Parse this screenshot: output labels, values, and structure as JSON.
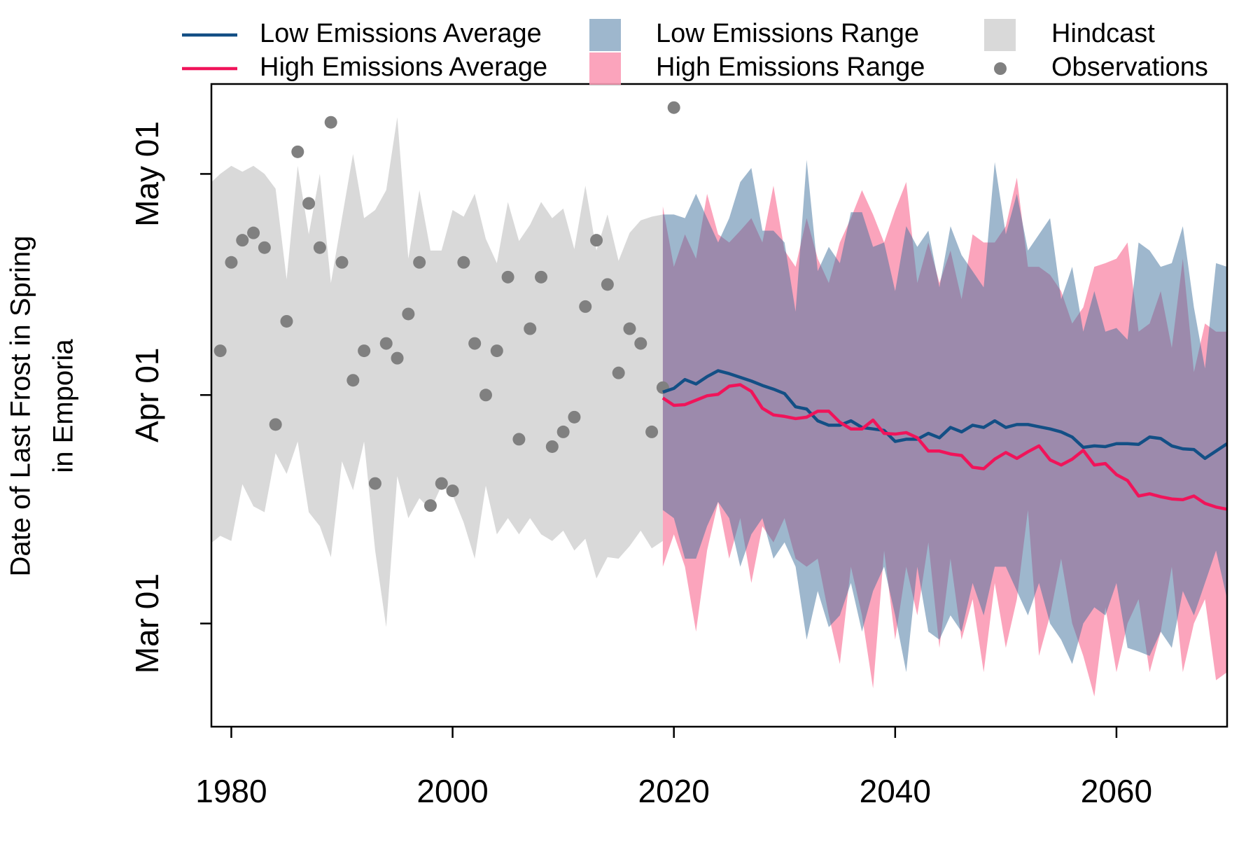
{
  "chart_data": {
    "type": "line",
    "ylabel": [
      "Date of Last Frost in Spring",
      "in Emporia"
    ],
    "xlim": [
      1978.2,
      2070
    ],
    "xticks": [
      1980,
      2000,
      2020,
      2040,
      2060
    ],
    "ylim": [
      46,
      133.2
    ],
    "yticks": [
      {
        "value": 60,
        "label": "Mar 01"
      },
      {
        "value": 91,
        "label": "Apr 01"
      },
      {
        "value": 121,
        "label": "May 01"
      }
    ],
    "legend": "top",
    "series": [
      {
        "name": "Low Emissions Average",
        "type": "line",
        "color": "#134f85",
        "x": [
          2019,
          2020,
          2021,
          2022,
          2023,
          2024,
          2025,
          2026,
          2027,
          2028,
          2029,
          2030,
          2031,
          2032,
          2033,
          2034,
          2035,
          2036,
          2037,
          2038,
          2039,
          2040,
          2041,
          2042,
          2043,
          2044,
          2045,
          2046,
          2047,
          2048,
          2049,
          2050,
          2051,
          2052,
          2053,
          2054,
          2055,
          2056,
          2057,
          2058,
          2059,
          2060,
          2061,
          2062,
          2063,
          2064,
          2065,
          2066,
          2067,
          2068,
          2069,
          2070
        ],
        "values": [
          91.4,
          91.9,
          93.1,
          92.5,
          93.5,
          94.3,
          93.9,
          93.4,
          92.9,
          92.3,
          91.8,
          91.2,
          89.4,
          89.1,
          87.5,
          86.9,
          86.9,
          87.5,
          86.6,
          86.4,
          86.2,
          84.7,
          85,
          85,
          85.8,
          85.2,
          86.6,
          86,
          86.9,
          86.6,
          87.5,
          86.6,
          87,
          87,
          86.7,
          86.4,
          86,
          85.3,
          83.9,
          84.1,
          84,
          84.4,
          84.4,
          84.3,
          85.3,
          85.1,
          84.1,
          83.7,
          83.6,
          82.4,
          83.4,
          84.4
        ]
      },
      {
        "name": "High Emissions Average",
        "type": "line",
        "color": "#f0145a",
        "x": [
          2019,
          2020,
          2021,
          2022,
          2023,
          2024,
          2025,
          2026,
          2027,
          2028,
          2029,
          2030,
          2031,
          2032,
          2033,
          2034,
          2035,
          2036,
          2037,
          2038,
          2039,
          2040,
          2041,
          2042,
          2043,
          2044,
          2045,
          2046,
          2047,
          2048,
          2049,
          2050,
          2051,
          2052,
          2053,
          2054,
          2055,
          2056,
          2057,
          2058,
          2059,
          2060,
          2061,
          2062,
          2063,
          2064,
          2065,
          2066,
          2067,
          2068,
          2069,
          2070
        ],
        "values": [
          90.6,
          89.6,
          89.7,
          90.3,
          90.9,
          91.1,
          92.2,
          92.4,
          91.5,
          89.2,
          88.3,
          88.1,
          87.8,
          88,
          88.8,
          88.8,
          87.3,
          86.4,
          86.4,
          87.6,
          85.8,
          85.7,
          85.9,
          85.2,
          83.4,
          83.4,
          83,
          82.8,
          81.2,
          81,
          82.3,
          83.2,
          82.4,
          83.3,
          84.1,
          82.2,
          81.5,
          82.3,
          83.5,
          81.5,
          81.7,
          80.2,
          79.4,
          77.3,
          77.6,
          77.2,
          76.9,
          76.8,
          77.3,
          76.3,
          75.8,
          75.5
        ]
      },
      {
        "name": "Low Emissions Range",
        "type": "band",
        "color": "#3d6f9c",
        "x": [
          2019,
          2020,
          2021,
          2022,
          2023,
          2024,
          2025,
          2026,
          2027,
          2028,
          2029,
          2030,
          2031,
          2032,
          2033,
          2034,
          2035,
          2036,
          2037,
          2038,
          2039,
          2040,
          2041,
          2042,
          2043,
          2044,
          2045,
          2046,
          2047,
          2048,
          2049,
          2050,
          2051,
          2052,
          2053,
          2054,
          2055,
          2056,
          2057,
          2058,
          2059,
          2060,
          2061,
          2062,
          2063,
          2064,
          2065,
          2066,
          2067,
          2068,
          2069,
          2070
        ],
        "upper": [
          115.5,
          115.5,
          115,
          118.3,
          115,
          111.7,
          115,
          119.9,
          121.8,
          113.3,
          113.3,
          111.7,
          102.3,
          122.9,
          107.8,
          111.1,
          108.9,
          115.8,
          115.8,
          111.1,
          111.7,
          105.1,
          113.9,
          111.1,
          113.3,
          105.6,
          113.9,
          110,
          107.8,
          105.6,
          122.6,
          112.8,
          118.3,
          110.6,
          112.8,
          115,
          104,
          108.4,
          99.6,
          105.1,
          99.6,
          100.1,
          98.5,
          111.7,
          110.6,
          108.4,
          108.9,
          113.9,
          102.9,
          94.6,
          108.9,
          108.4
        ],
        "lower": [
          75.4,
          74.3,
          68.8,
          68.8,
          73.2,
          76.5,
          74.3,
          67.7,
          72.1,
          74.3,
          68.8,
          71,
          67.7,
          57.8,
          64.4,
          59.5,
          61.1,
          65.5,
          58.9,
          64.4,
          67.7,
          61.1,
          53.4,
          67.7,
          58.9,
          57.8,
          61.1,
          58.9,
          65.5,
          61.1,
          67.7,
          67.7,
          64.4,
          61.1,
          65.5,
          60,
          57.8,
          54.5,
          60,
          62.2,
          61.1,
          65.5,
          56.7,
          56.2,
          55.6,
          58.9,
          56.7,
          64.4,
          61.1,
          65.5,
          69.9,
          63.3
        ]
      },
      {
        "name": "High Emissions Range",
        "type": "band",
        "color": "#fb9ab5",
        "x": [
          2019,
          2020,
          2021,
          2022,
          2023,
          2024,
          2025,
          2026,
          2027,
          2028,
          2029,
          2030,
          2031,
          2032,
          2033,
          2034,
          2035,
          2036,
          2037,
          2038,
          2039,
          2040,
          2041,
          2042,
          2043,
          2044,
          2045,
          2046,
          2047,
          2048,
          2049,
          2050,
          2051,
          2052,
          2053,
          2054,
          2055,
          2056,
          2057,
          2058,
          2059,
          2060,
          2061,
          2062,
          2063,
          2064,
          2065,
          2066,
          2067,
          2068,
          2069,
          2070
        ],
        "upper": [
          116.6,
          108.4,
          112.8,
          109.5,
          118.3,
          112.8,
          111.7,
          113.3,
          115,
          111.7,
          119.4,
          110.6,
          108.4,
          115,
          109.5,
          106.2,
          111.7,
          115,
          118.8,
          115.5,
          111.7,
          116.1,
          119.9,
          106.2,
          111.7,
          106.2,
          110.6,
          104,
          112.8,
          111.7,
          111.7,
          113.9,
          120.5,
          108.4,
          108.4,
          107.3,
          105.1,
          100.7,
          102.9,
          108.4,
          108.9,
          109.5,
          111.7,
          99.6,
          100.7,
          105.1,
          97.4,
          109.5,
          94.1,
          100.7,
          99.6,
          99.6
        ],
        "lower": [
          67.7,
          72.1,
          67.7,
          58.9,
          69.9,
          76.5,
          68.8,
          74.3,
          65.5,
          73.2,
          71,
          74.3,
          68.8,
          67.7,
          68.8,
          61.1,
          54.5,
          67.7,
          61.1,
          51.2,
          69.9,
          57.8,
          67.7,
          61.1,
          71,
          56.7,
          68.8,
          57.8,
          63.3,
          53.4,
          65.5,
          56.7,
          63.3,
          75.4,
          55.6,
          61.1,
          68.8,
          60,
          55.6,
          50.1,
          62.2,
          53.4,
          60,
          63.3,
          53.4,
          58.9,
          67.7,
          53.4,
          60,
          63.3,
          52.3,
          53.4
        ]
      },
      {
        "name": "Hindcast",
        "type": "band",
        "color": "#d9d9d9",
        "x": [
          1978,
          1979,
          1980,
          1981,
          1982,
          1983,
          1984,
          1985,
          1986,
          1987,
          1988,
          1989,
          1990,
          1991,
          1992,
          1993,
          1994,
          1995,
          1996,
          1997,
          1998,
          1999,
          2000,
          2001,
          2002,
          2003,
          2004,
          2005,
          2006,
          2007,
          2008,
          2009,
          2010,
          2011,
          2012,
          2013,
          2014,
          2015,
          2016,
          2017,
          2018,
          2019
        ],
        "upper": [
          119.6,
          121,
          122.1,
          121.3,
          122.1,
          121,
          119,
          106.7,
          122.1,
          112.8,
          121,
          106.2,
          115,
          123.7,
          115,
          116.1,
          118.8,
          128.7,
          109.5,
          118.8,
          110.6,
          110.6,
          116.1,
          115.2,
          118.3,
          112.2,
          108.9,
          117.2,
          111.9,
          114.1,
          117.2,
          115,
          116.3,
          110.8,
          119.4,
          110.6,
          115.5,
          109.2,
          113,
          114.7,
          115.2,
          115.5
        ],
        "lower": [
          70.7,
          71.9,
          71.2,
          78.9,
          75.9,
          75.1,
          83.1,
          80.3,
          84.7,
          75.1,
          73.2,
          69,
          82,
          78.1,
          84.7,
          69.9,
          59.5,
          80,
          74.3,
          77,
          75.4,
          78.7,
          77.4,
          73.7,
          68.8,
          78.7,
          72.1,
          74.3,
          72.1,
          74.3,
          72.1,
          71.2,
          72.6,
          69.9,
          71.5,
          66.1,
          69,
          68.8,
          70.5,
          72.6,
          70.2,
          71.2
        ]
      },
      {
        "name": "Observations",
        "type": "scatter",
        "color": "#808080",
        "x": [
          1979,
          1980,
          1981,
          1982,
          1983,
          1984,
          1985,
          1986,
          1987,
          1988,
          1989,
          1990,
          1991,
          1992,
          1993,
          1994,
          1995,
          1996,
          1997,
          1998,
          1999,
          2000,
          2001,
          2002,
          2003,
          2004,
          2005,
          2006,
          2007,
          2008,
          2009,
          2010,
          2011,
          2012,
          2013,
          2014,
          2015,
          2016,
          2017,
          2018,
          2019,
          2020
        ],
        "values": [
          97,
          109,
          112,
          113,
          111,
          87,
          101,
          124,
          117,
          111,
          128,
          109,
          93,
          97,
          79,
          98,
          96,
          102,
          109,
          76,
          79,
          78,
          109,
          98,
          91,
          97,
          107,
          85,
          100,
          107,
          84,
          86,
          88,
          103,
          112,
          106,
          94,
          100,
          98,
          86,
          92,
          130
        ]
      }
    ]
  }
}
